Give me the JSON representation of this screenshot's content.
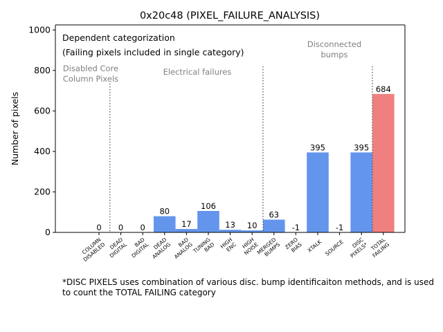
{
  "chart_data": {
    "type": "bar",
    "title": "0x20c48 (PIXEL_FAILURE_ANALYSIS)",
    "ylabel": "Number of pixels",
    "xlabel": "",
    "ylim": [
      0,
      1025
    ],
    "yticks": [
      0,
      200,
      400,
      600,
      800,
      1000
    ],
    "categories": [
      [
        "COLUMN",
        "DISABLED"
      ],
      [
        "DEAD",
        "DIGITAL"
      ],
      [
        "BAD",
        "DIGITAL"
      ],
      [
        "DEAD",
        "ANALOG"
      ],
      [
        "BAD",
        "ANALOG"
      ],
      [
        "TUNING",
        "BAD"
      ],
      [
        "HIGH",
        "ENC"
      ],
      [
        "HIGH",
        "NOISE"
      ],
      [
        "MERGED",
        "BUMPS"
      ],
      [
        "ZERO",
        "BIAS"
      ],
      [
        "XTALK"
      ],
      [
        "SOURCE"
      ],
      [
        "DISC",
        "PIXELS*"
      ],
      [
        "TOTAL",
        "FAILING"
      ]
    ],
    "values": [
      0,
      0,
      0,
      80,
      17,
      106,
      13,
      10,
      63,
      -1,
      395,
      -1,
      395,
      684
    ],
    "colors": [
      "#6495ed",
      "#6495ed",
      "#6495ed",
      "#6495ed",
      "#6495ed",
      "#6495ed",
      "#6495ed",
      "#6495ed",
      "#6495ed",
      "#6495ed",
      "#6495ed",
      "#6495ed",
      "#6495ed",
      "#f08080"
    ],
    "grid": false,
    "legend_box": {
      "line1": "Dependent categorization",
      "line2": "(Failing pixels included in single category)"
    },
    "group_labels": [
      {
        "lines": [
          "Disabled Core",
          "Column Pixels"
        ],
        "after_index": null
      },
      {
        "lines": [
          "Electrical failures"
        ],
        "after_index": null
      },
      {
        "lines": [
          "Disconnected",
          "bumps"
        ],
        "after_index": null
      }
    ],
    "separators_after_index": [
      0,
      7,
      12
    ]
  },
  "footnote": "*DISC PIXELS uses combination of various disc. bump identificaiton methods, and is used to count the TOTAL FAILING category"
}
